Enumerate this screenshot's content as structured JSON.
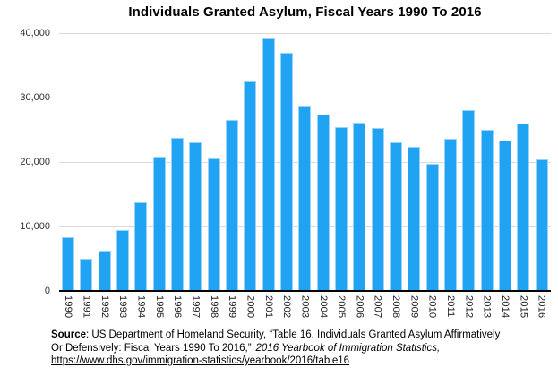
{
  "chart_data": {
    "type": "bar",
    "title": "Individuals Granted Asylum, Fiscal Years 1990 To 2016",
    "categories": [
      "1990",
      "1991",
      "1992",
      "1993",
      "1994",
      "1995",
      "1996",
      "1997",
      "1998",
      "1999",
      "2000",
      "2001",
      "2002",
      "2003",
      "2004",
      "2005",
      "2006",
      "2007",
      "2008",
      "2009",
      "2010",
      "2011",
      "2012",
      "2013",
      "2014",
      "2015",
      "2016"
    ],
    "values": [
      8400,
      5000,
      6300,
      9500,
      13800,
      20800,
      23700,
      23000,
      20500,
      26500,
      32500,
      39200,
      36900,
      28700,
      27300,
      25400,
      26100,
      25300,
      23000,
      22300,
      19700,
      23600,
      28100,
      25000,
      23300,
      26000,
      20400
    ],
    "xlabel": "",
    "ylabel": "",
    "ylim": [
      0,
      40000
    ],
    "ytick_labels": [
      "40,000",
      "30,000",
      "20,000",
      "10,000",
      "0"
    ],
    "grid": true,
    "legend_position": "none",
    "x_label_rotation": 90,
    "bar_color": "#21A3F3",
    "bar_edge_color": "#9AD3F8",
    "gridline_color": "#d9d9d9",
    "baseline_color": "#000000"
  },
  "footer": {
    "source_bold": "Source",
    "line1_rest": ": US Department of Homeland Security, “Table 16. Individuals Granted Asylum Affirmatively",
    "line2_text": "Or Defensively: Fiscal Years 1990 To 2016,”",
    "line2_italic": "2016 Yearbook of Immigration Statistics,",
    "line3_url": "https://www.dhs.gov/immigration-statistics/yearbook/2016/table16"
  }
}
